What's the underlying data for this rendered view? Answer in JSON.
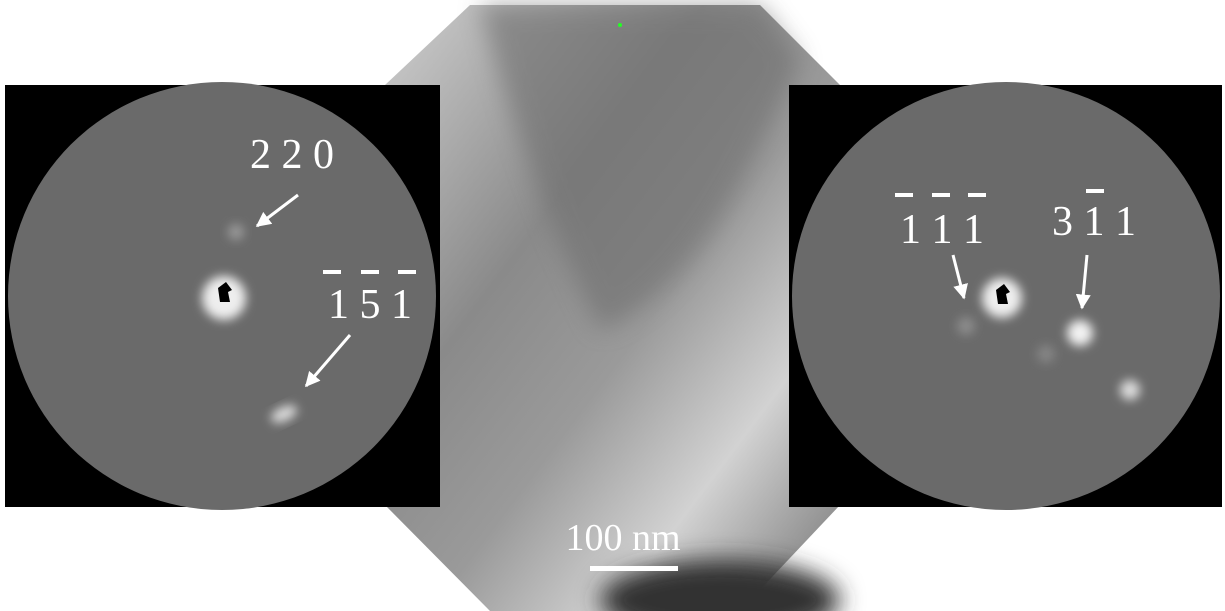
{
  "left_pattern": {
    "labels": [
      "2 2 0",
      "1 5 1"
    ]
  },
  "right_pattern": {
    "labels": [
      "1 1 1",
      "3 1 1"
    ]
  },
  "scale_bar": {
    "label": "100 nm"
  }
}
